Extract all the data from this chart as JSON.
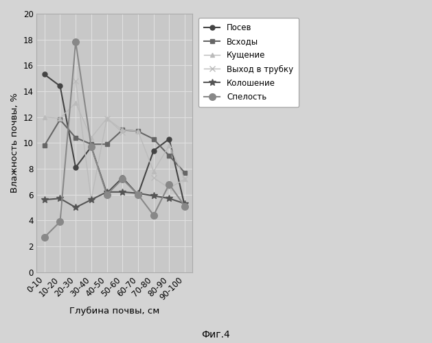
{
  "x_labels": [
    "0-10",
    "10-20",
    "20-30",
    "30-40",
    "40-50",
    "50-60",
    "60-70",
    "70-80",
    "80-90",
    "90-100"
  ],
  "series": [
    {
      "name": "Посев",
      "values": [
        15.3,
        14.4,
        8.1,
        9.7,
        6.1,
        7.3,
        6.0,
        9.4,
        10.3,
        5.1
      ],
      "color": "#444444",
      "marker": "o",
      "linestyle": "-",
      "linewidth": 1.5,
      "markersize": 5,
      "markerfacecolor": "#444444"
    },
    {
      "name": "Всходы",
      "values": [
        9.8,
        11.8,
        10.4,
        9.9,
        9.9,
        11.0,
        10.9,
        10.3,
        9.0,
        7.7
      ],
      "color": "#666666",
      "marker": "s",
      "linestyle": "-",
      "linewidth": 1.5,
      "markersize": 5,
      "markerfacecolor": "#666666"
    },
    {
      "name": "Кущение",
      "values": [
        12.0,
        11.9,
        13.1,
        10.4,
        11.9,
        11.0,
        10.9,
        7.8,
        9.8,
        7.2
      ],
      "color": "#bbbbbb",
      "marker": "^",
      "linestyle": "-",
      "linewidth": 1.0,
      "markersize": 5,
      "markerfacecolor": "#bbbbbb"
    },
    {
      "name": "Выход в трубку",
      "values": [
        null,
        null,
        14.8,
        5.6,
        11.9,
        10.8,
        null,
        7.3,
        6.5,
        7.2
      ],
      "color": "#bbbbbb",
      "marker": "x",
      "linestyle": "-",
      "linewidth": 1.0,
      "markersize": 6,
      "markerfacecolor": "#bbbbbb"
    },
    {
      "name": "Колошение",
      "values": [
        5.6,
        5.7,
        5.0,
        5.6,
        6.2,
        6.2,
        6.1,
        5.9,
        5.7,
        5.3
      ],
      "color": "#555555",
      "marker": "*",
      "linestyle": "-",
      "linewidth": 1.5,
      "markersize": 7,
      "markerfacecolor": "#555555"
    },
    {
      "name": "Спелость",
      "values": [
        2.7,
        3.9,
        17.8,
        9.7,
        6.0,
        7.2,
        6.0,
        4.4,
        6.8,
        5.1
      ],
      "color": "#888888",
      "marker": "o",
      "linestyle": "-",
      "linewidth": 1.5,
      "markersize": 7,
      "markerfacecolor": "#888888"
    }
  ],
  "ylabel": "Влажность почвы, %",
  "xlabel": "Глубина почвы, см",
  "caption": "Фиг.4",
  "ylim": [
    0,
    20
  ],
  "yticks": [
    0,
    2,
    4,
    6,
    8,
    10,
    12,
    14,
    16,
    18,
    20
  ],
  "fig_bg_color": "#d4d4d4",
  "plot_bg_color": "#c8c8c8",
  "grid_color": "#e0e0e0",
  "legend_bg": "#ffffff"
}
